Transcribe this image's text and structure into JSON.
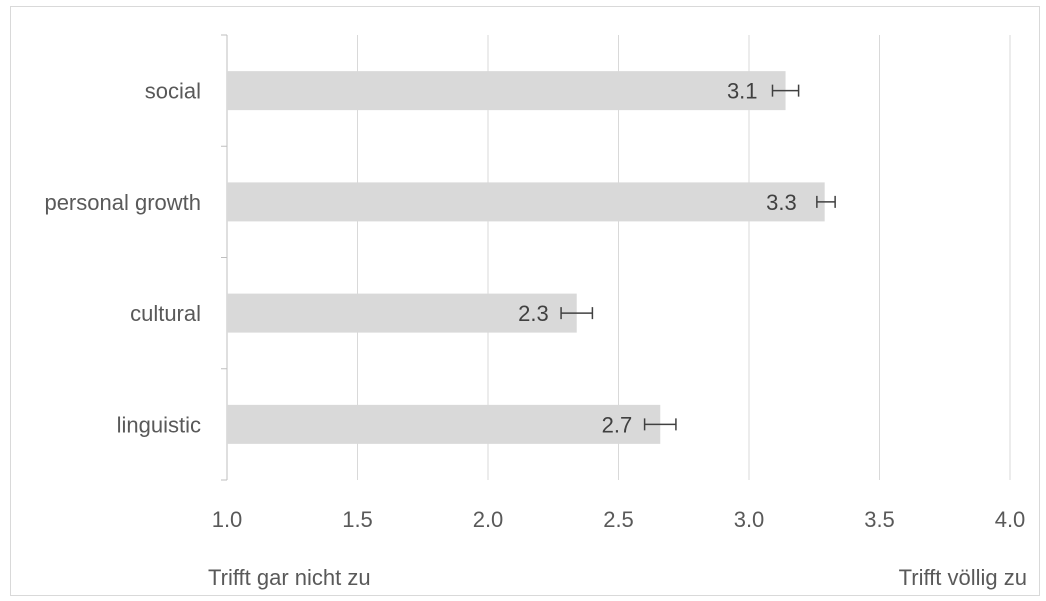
{
  "chart_data": {
    "type": "bar",
    "orientation": "horizontal",
    "categories": [
      "social",
      "personal growth",
      "cultural",
      "linguistic"
    ],
    "values": [
      3.14,
      3.29,
      2.34,
      2.66
    ],
    "data_labels": [
      "3.1",
      "3.3",
      "2.3",
      "2.7"
    ],
    "error_low": [
      3.09,
      3.26,
      2.28,
      2.6
    ],
    "error_high": [
      3.19,
      3.33,
      2.4,
      2.72
    ],
    "xlim": [
      1.0,
      4.0
    ],
    "xticks": [
      1.0,
      1.5,
      2.0,
      2.5,
      3.0,
      3.5,
      4.0
    ],
    "xtick_labels": [
      "1.0",
      "1.5",
      "2.0",
      "2.5",
      "3.0",
      "3.5",
      "4.0"
    ],
    "scale_anchor_low": "Trifft gar nicht zu",
    "scale_anchor_high": "Trifft völlig zu",
    "grid": true,
    "colors": {
      "bar": "#d9d9d9",
      "grid": "#d9d9d9",
      "axis": "#bfbfbf",
      "error": "#404040"
    }
  }
}
